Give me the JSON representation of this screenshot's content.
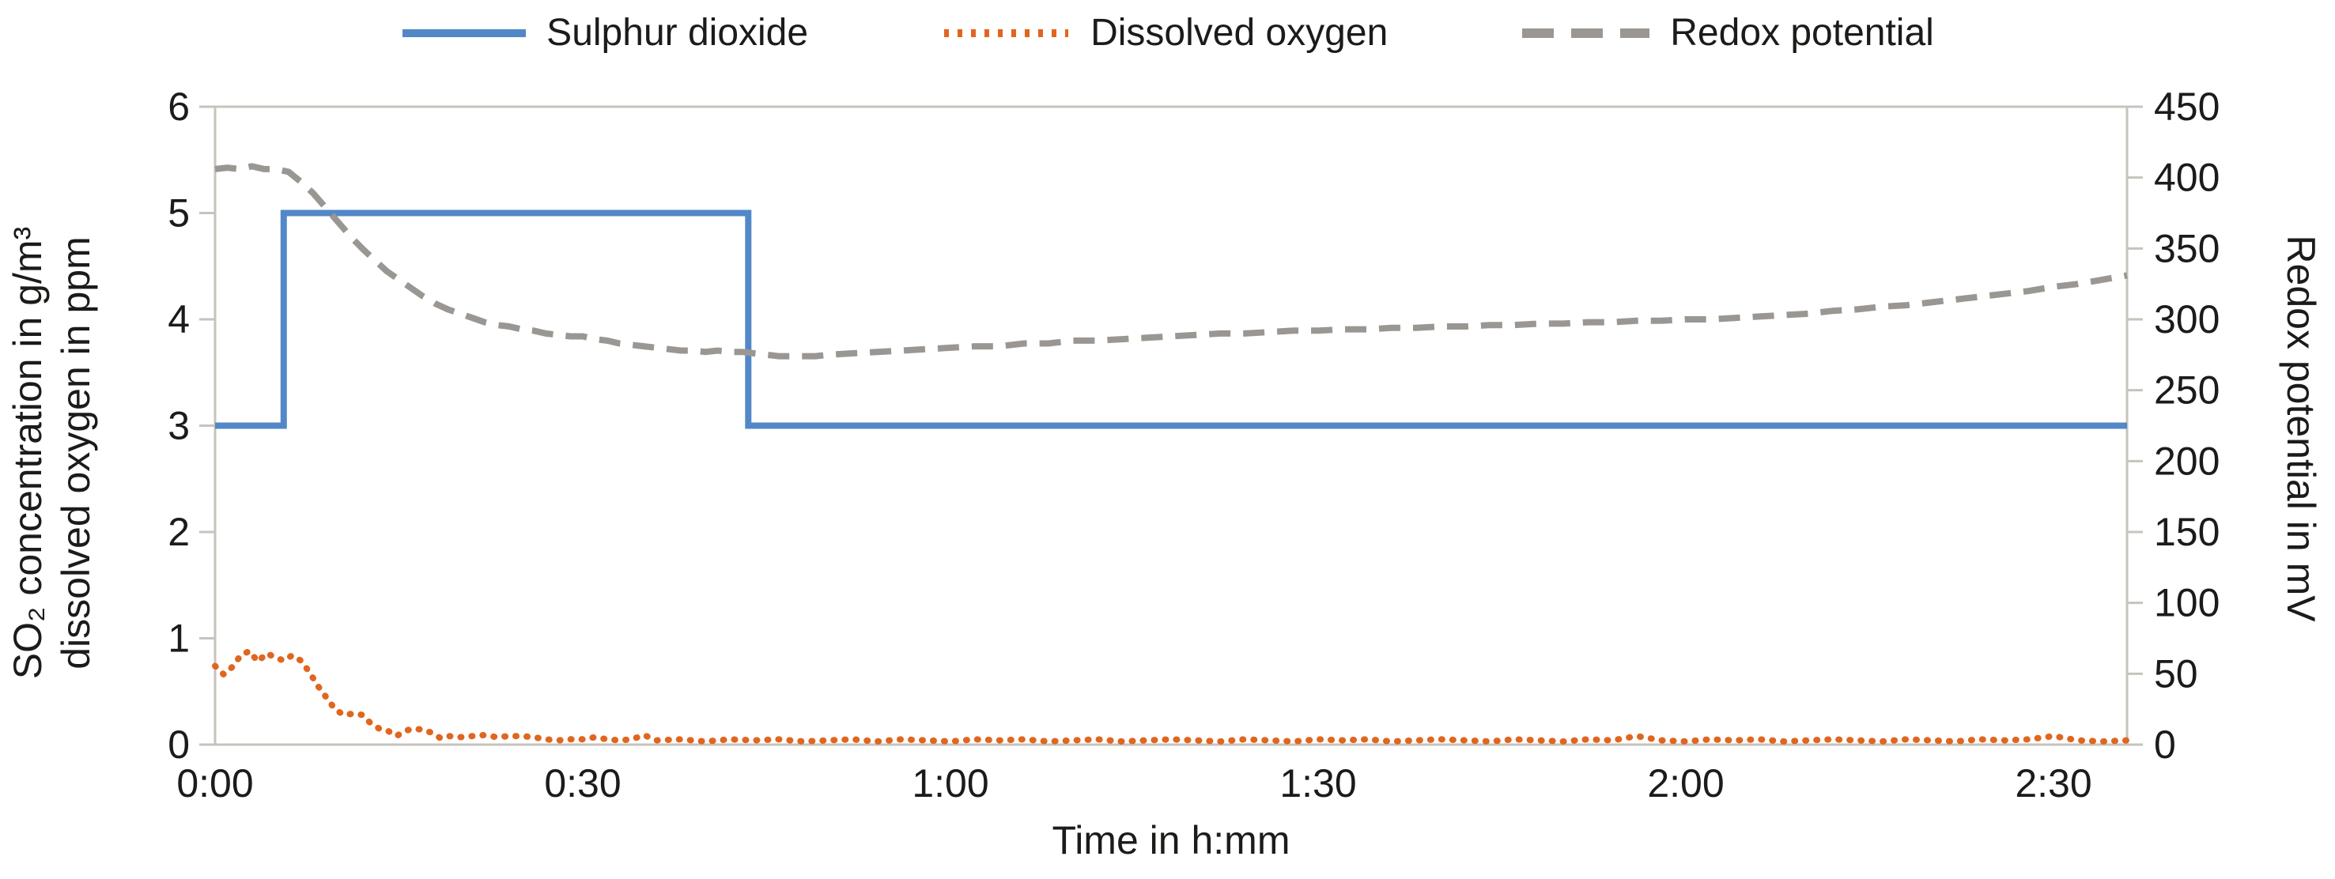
{
  "legend": {
    "items": [
      {
        "id": "sulphur-dioxide",
        "label": "Sulphur dioxide",
        "color": "#5288C7",
        "style": "solid"
      },
      {
        "id": "dissolved-oxygen",
        "label": "Dissolved oxygen",
        "color": "#E0661F",
        "style": "dot"
      },
      {
        "id": "redox-potential",
        "label": "Redox potential",
        "color": "#9A9793",
        "style": "dash"
      }
    ]
  },
  "axes": {
    "left": {
      "title_line1": "SO₂ concentration in g/m³",
      "title_line2": "dissolved oxygen in ppm",
      "tick_values": [
        6,
        5,
        4,
        3,
        2,
        1,
        0
      ],
      "tick_labels": [
        "6",
        "5",
        "4",
        "3",
        "2",
        "1",
        "0"
      ],
      "range": [
        0,
        6
      ]
    },
    "right": {
      "title": "Redox potential in mV",
      "tick_values": [
        450,
        400,
        350,
        300,
        250,
        200,
        150,
        100,
        50,
        0
      ],
      "tick_labels": [
        "450",
        "400",
        "350",
        "300",
        "250",
        "200",
        "150",
        "100",
        "50",
        "0"
      ],
      "range": [
        0,
        450
      ]
    },
    "x": {
      "title": "Time in h:mm",
      "tick_values": [
        0,
        30,
        60,
        90,
        120,
        150
      ],
      "tick_labels": [
        "0:00",
        "0:30",
        "1:00",
        "1:30",
        "2:00",
        "2:30"
      ],
      "range": [
        0,
        156
      ]
    }
  },
  "frame_color": "#C7C3BD",
  "text_color": "#1d1b19",
  "chart_data": {
    "type": "line",
    "x_unit": "minutes",
    "xlabel": "Time in h:mm",
    "ylabel_left": "SO₂ concentration in g/m³ / dissolved oxygen in ppm",
    "ylabel_right": "Redox potential in mV",
    "xlim": [
      0,
      156
    ],
    "ylim_left": [
      0,
      6
    ],
    "ylim_right": [
      0,
      450
    ],
    "grid": false,
    "legend_position": "top",
    "series": [
      {
        "name": "Sulphur dioxide",
        "axis": "left",
        "unit": "g/m³",
        "color": "#5288C7",
        "style": "solid",
        "width": 8,
        "points": [
          [
            0,
            3
          ],
          [
            5.6,
            3
          ],
          [
            5.6,
            5
          ],
          [
            43.5,
            5
          ],
          [
            43.5,
            3
          ],
          [
            156,
            3
          ]
        ]
      },
      {
        "name": "Dissolved oxygen",
        "axis": "left",
        "unit": "ppm",
        "color": "#E0661F",
        "style": "dot",
        "width": 8,
        "points": [
          [
            0,
            0.74
          ],
          [
            0.7,
            0.66
          ],
          [
            1.4,
            0.73
          ],
          [
            2.1,
            0.84
          ],
          [
            2.8,
            0.88
          ],
          [
            3.5,
            0.78
          ],
          [
            4.2,
            0.86
          ],
          [
            4.9,
            0.82
          ],
          [
            5.6,
            0.79
          ],
          [
            6.3,
            0.84
          ],
          [
            7,
            0.79
          ],
          [
            7.7,
            0.68
          ],
          [
            8.4,
            0.55
          ],
          [
            9.1,
            0.44
          ],
          [
            9.8,
            0.33
          ],
          [
            10.5,
            0.28
          ],
          [
            11.2,
            0.29
          ],
          [
            12,
            0.28
          ],
          [
            12.7,
            0.2
          ],
          [
            13.4,
            0.15
          ],
          [
            14.1,
            0.13
          ],
          [
            14.8,
            0.08
          ],
          [
            15.5,
            0.13
          ],
          [
            16.2,
            0.15
          ],
          [
            17,
            0.14
          ],
          [
            17.7,
            0.11
          ],
          [
            18.4,
            0.06
          ],
          [
            19.1,
            0.08
          ],
          [
            20,
            0.07
          ],
          [
            21,
            0.08
          ],
          [
            22,
            0.09
          ],
          [
            23,
            0.07
          ],
          [
            24,
            0.08
          ],
          [
            25,
            0.08
          ],
          [
            26,
            0.07
          ],
          [
            27,
            0.05
          ],
          [
            28,
            0.04
          ],
          [
            29,
            0.05
          ],
          [
            30,
            0.05
          ],
          [
            31,
            0.07
          ],
          [
            32,
            0.05
          ],
          [
            33,
            0.04
          ],
          [
            34,
            0.05
          ],
          [
            35,
            0.09
          ],
          [
            36,
            0.04
          ],
          [
            38,
            0.05
          ],
          [
            40,
            0.03
          ],
          [
            42,
            0.05
          ],
          [
            44,
            0.04
          ],
          [
            46,
            0.05
          ],
          [
            48,
            0.03
          ],
          [
            50,
            0.04
          ],
          [
            52,
            0.05
          ],
          [
            54,
            0.03
          ],
          [
            56,
            0.05
          ],
          [
            58,
            0.04
          ],
          [
            60,
            0.03
          ],
          [
            62,
            0.05
          ],
          [
            64,
            0.04
          ],
          [
            66,
            0.05
          ],
          [
            68,
            0.03
          ],
          [
            70,
            0.04
          ],
          [
            72,
            0.05
          ],
          [
            74,
            0.03
          ],
          [
            76,
            0.04
          ],
          [
            78,
            0.05
          ],
          [
            80,
            0.04
          ],
          [
            82,
            0.03
          ],
          [
            84,
            0.05
          ],
          [
            86,
            0.04
          ],
          [
            88,
            0.03
          ],
          [
            90,
            0.05
          ],
          [
            92,
            0.04
          ],
          [
            94,
            0.05
          ],
          [
            96,
            0.03
          ],
          [
            98,
            0.04
          ],
          [
            100,
            0.05
          ],
          [
            102,
            0.04
          ],
          [
            104,
            0.03
          ],
          [
            106,
            0.05
          ],
          [
            108,
            0.04
          ],
          [
            110,
            0.03
          ],
          [
            112,
            0.05
          ],
          [
            114,
            0.04
          ],
          [
            116,
            0.08
          ],
          [
            118,
            0.04
          ],
          [
            120,
            0.03
          ],
          [
            122,
            0.05
          ],
          [
            124,
            0.04
          ],
          [
            126,
            0.05
          ],
          [
            128,
            0.03
          ],
          [
            130,
            0.04
          ],
          [
            132,
            0.05
          ],
          [
            134,
            0.04
          ],
          [
            136,
            0.03
          ],
          [
            138,
            0.05
          ],
          [
            140,
            0.04
          ],
          [
            142,
            0.03
          ],
          [
            144,
            0.05
          ],
          [
            146,
            0.04
          ],
          [
            148,
            0.05
          ],
          [
            150,
            0.08
          ],
          [
            152,
            0.04
          ],
          [
            154,
            0.03
          ],
          [
            156,
            0.04
          ]
        ]
      },
      {
        "name": "Redox potential",
        "axis": "right",
        "unit": "mV",
        "color": "#9A9793",
        "style": "dash",
        "width": 8,
        "points": [
          [
            0,
            406
          ],
          [
            1,
            407
          ],
          [
            2,
            406
          ],
          [
            3,
            408
          ],
          [
            4,
            406
          ],
          [
            5,
            406
          ],
          [
            6,
            404
          ],
          [
            7,
            397
          ],
          [
            8,
            389
          ],
          [
            9,
            379
          ],
          [
            10,
            369
          ],
          [
            11,
            359
          ],
          [
            12,
            350
          ],
          [
            13,
            342
          ],
          [
            14,
            334
          ],
          [
            15,
            328
          ],
          [
            16,
            322
          ],
          [
            17,
            316
          ],
          [
            18,
            311
          ],
          [
            19,
            307
          ],
          [
            20,
            304
          ],
          [
            21,
            301
          ],
          [
            22,
            298
          ],
          [
            23,
            296
          ],
          [
            24,
            295
          ],
          [
            25,
            293
          ],
          [
            26,
            292
          ],
          [
            27,
            290
          ],
          [
            28,
            289
          ],
          [
            29,
            288
          ],
          [
            30,
            288
          ],
          [
            31,
            286
          ],
          [
            32,
            285
          ],
          [
            33,
            283
          ],
          [
            34,
            282
          ],
          [
            35,
            281
          ],
          [
            36,
            280
          ],
          [
            37,
            279
          ],
          [
            38,
            278
          ],
          [
            39,
            278
          ],
          [
            40,
            277
          ],
          [
            41,
            278
          ],
          [
            42,
            277
          ],
          [
            43,
            277
          ],
          [
            44,
            276
          ],
          [
            45,
            275
          ],
          [
            46,
            274
          ],
          [
            47,
            274
          ],
          [
            48,
            274
          ],
          [
            49,
            274
          ],
          [
            50,
            275
          ],
          [
            52,
            276
          ],
          [
            54,
            277
          ],
          [
            56,
            278
          ],
          [
            58,
            279
          ],
          [
            60,
            280
          ],
          [
            62,
            281
          ],
          [
            64,
            281
          ],
          [
            66,
            283
          ],
          [
            68,
            283
          ],
          [
            70,
            285
          ],
          [
            72,
            285
          ],
          [
            74,
            286
          ],
          [
            76,
            287
          ],
          [
            78,
            288
          ],
          [
            80,
            289
          ],
          [
            82,
            290
          ],
          [
            84,
            290
          ],
          [
            86,
            291
          ],
          [
            88,
            292
          ],
          [
            90,
            292
          ],
          [
            92,
            293
          ],
          [
            94,
            293
          ],
          [
            96,
            294
          ],
          [
            98,
            294
          ],
          [
            100,
            295
          ],
          [
            102,
            295
          ],
          [
            104,
            296
          ],
          [
            106,
            296
          ],
          [
            108,
            297
          ],
          [
            110,
            297
          ],
          [
            112,
            298
          ],
          [
            114,
            298
          ],
          [
            116,
            299
          ],
          [
            118,
            299
          ],
          [
            120,
            300
          ],
          [
            122,
            300
          ],
          [
            124,
            301
          ],
          [
            126,
            302
          ],
          [
            128,
            303
          ],
          [
            130,
            304
          ],
          [
            132,
            306
          ],
          [
            134,
            307
          ],
          [
            136,
            309
          ],
          [
            138,
            310
          ],
          [
            140,
            312
          ],
          [
            142,
            314
          ],
          [
            144,
            316
          ],
          [
            146,
            318
          ],
          [
            148,
            320
          ],
          [
            150,
            323
          ],
          [
            152,
            325
          ],
          [
            154,
            328
          ],
          [
            156,
            331
          ]
        ]
      }
    ]
  }
}
